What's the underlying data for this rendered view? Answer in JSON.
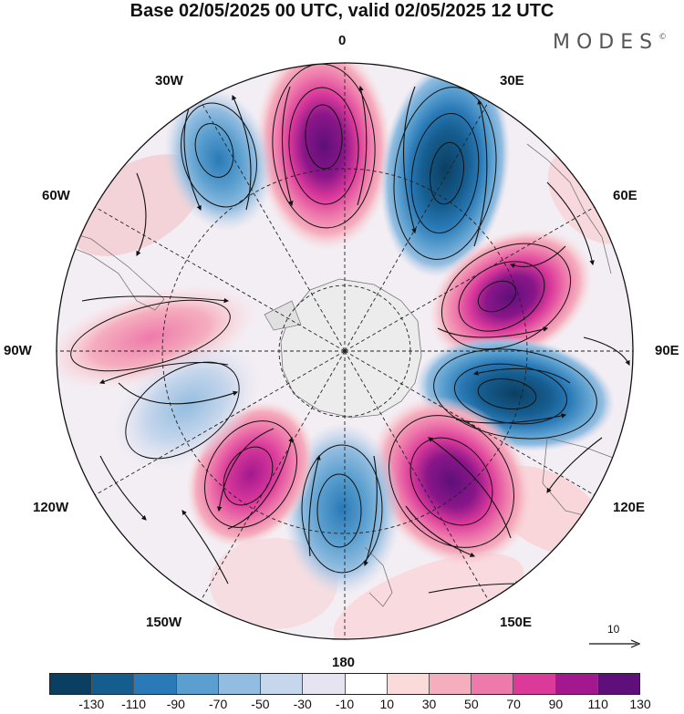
{
  "title": "Base 02/05/2025 00 UTC, valid 02/05/2025 12 UTC",
  "logo": {
    "text": "MODES",
    "mark": "©"
  },
  "longitude_labels": {
    "top": "0",
    "bottom": "180",
    "left": "90W",
    "right": "90E",
    "w30": "30W",
    "w60": "60W",
    "w120": "120W",
    "w150": "150W",
    "e30": "30E",
    "e60": "60E",
    "e120": "120E",
    "e150": "150E"
  },
  "vector_scale": {
    "label": "10"
  },
  "colorbar": {
    "colors": [
      "#0b3f62",
      "#165d8f",
      "#2a7ab7",
      "#5a9fcf",
      "#93bde0",
      "#c6d6ec",
      "#e6e4f1",
      "#ffffff",
      "#fbdada",
      "#f5aebe",
      "#ee7aab",
      "#db3a9b",
      "#a3188f",
      "#5e0f7a"
    ],
    "labels": [
      "-130",
      "-110",
      "-90",
      "-70",
      "-50",
      "-30",
      "-10",
      "10",
      "30",
      "50",
      "70",
      "90",
      "110",
      "130"
    ]
  },
  "chart_data": {
    "type": "heatmap",
    "projection": "south polar stereographic",
    "field": "anomaly with streamlines",
    "anomaly_centers": [
      {
        "longitude": "0",
        "sign": "positive",
        "peak_class": "130"
      },
      {
        "longitude": "30E",
        "sign": "negative",
        "peak_class": "-130"
      },
      {
        "longitude": "60E",
        "sign": "positive",
        "peak_class": "130"
      },
      {
        "longitude": "105E",
        "sign": "negative",
        "peak_class": "-130"
      },
      {
        "longitude": "150E",
        "sign": "positive",
        "peak_class": "130"
      },
      {
        "longitude": "180",
        "sign": "negative",
        "peak_class": "-90"
      },
      {
        "longitude": "150W",
        "sign": "positive",
        "peak_class": "110"
      },
      {
        "longitude": "120W",
        "sign": "negative",
        "peak_class": "-50"
      },
      {
        "longitude": "90W",
        "sign": "positive",
        "peak_class": "50"
      },
      {
        "longitude": "30W",
        "sign": "negative",
        "peak_class": "-70"
      }
    ]
  }
}
